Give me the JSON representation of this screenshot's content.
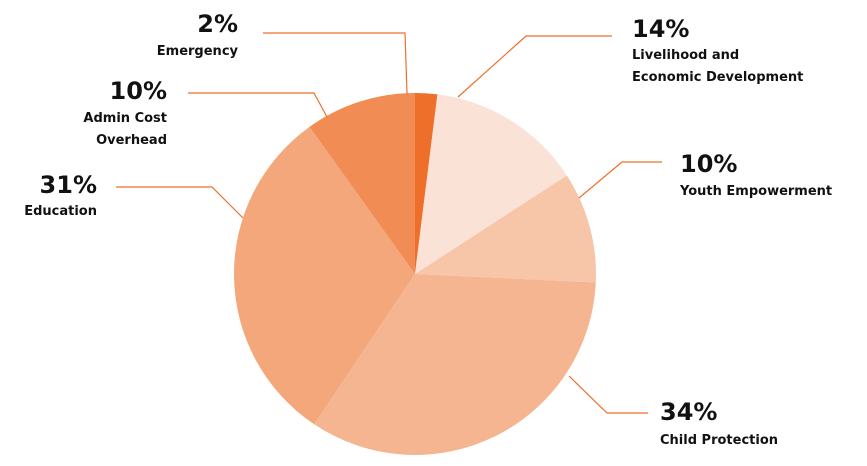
{
  "chart_data": {
    "type": "pie",
    "title": "",
    "slices": [
      {
        "label_lines": [
          "Emergency"
        ],
        "value": 2,
        "value_label": "2%",
        "color": "#ee6f2a"
      },
      {
        "label_lines": [
          "Livelihood and",
          "Economic Development"
        ],
        "value": 14,
        "value_label": "14%",
        "color": "#fbe2d6"
      },
      {
        "label_lines": [
          "Youth Empowerment"
        ],
        "value": 10,
        "value_label": "10%",
        "color": "#f7c6a9"
      },
      {
        "label_lines": [
          "Child Protection"
        ],
        "value": 34,
        "value_label": "34%",
        "color": "#f5b591"
      },
      {
        "label_lines": [
          "Education"
        ],
        "value": 31,
        "value_label": "31%",
        "color": "#f3a77b"
      },
      {
        "label_lines": [
          "Admin Cost",
          "Overhead"
        ],
        "value": 10,
        "value_label": "10%",
        "color": "#f08c54"
      }
    ],
    "leader_line_color": "#ee6f2a",
    "start_angle": "top",
    "direction": "clockwise"
  }
}
